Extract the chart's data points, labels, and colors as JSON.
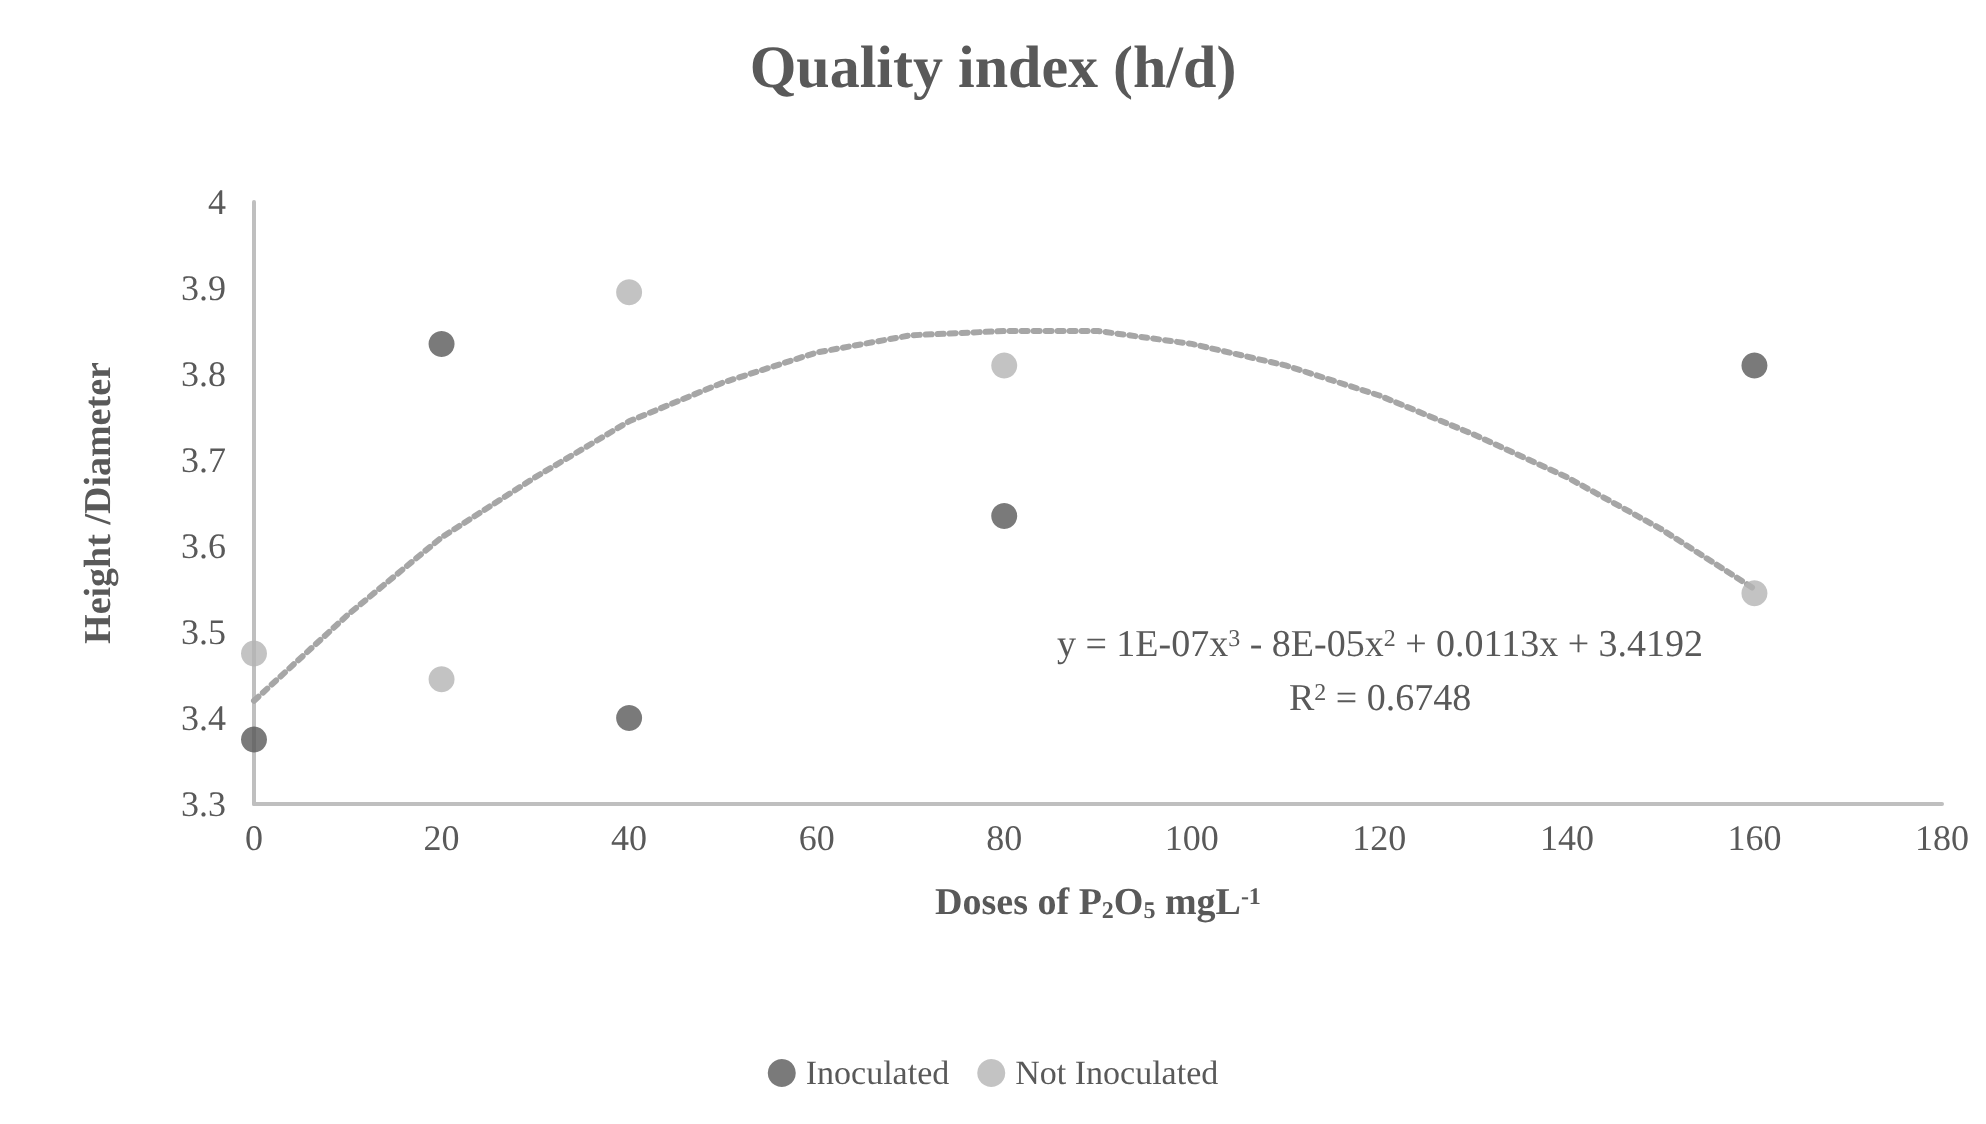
{
  "chart_data": {
    "type": "scatter",
    "title": "Quality index (h/d)",
    "xlabel": "Doses of P$_{2}$O$_{5}$ mgL$^{-1}$",
    "ylabel": "Height /Diameter",
    "x": [
      0,
      20,
      40,
      80,
      160
    ],
    "series": [
      {
        "name": "Inoculated",
        "color": "#595959",
        "values": [
          3.375,
          3.835,
          3.4,
          3.635,
          3.81
        ]
      },
      {
        "name": "Not Inoculated",
        "color": "#b4b4b4",
        "values": [
          3.475,
          3.445,
          3.895,
          3.81,
          3.545
        ]
      },
      {
        "type": "line",
        "color": "#a6a6a6",
        "line_style": "dotted",
        "marker": "none",
        "x": [
          0,
          10,
          20,
          30,
          40,
          50,
          60,
          70,
          80,
          90,
          100,
          110,
          120,
          130,
          140,
          150,
          160
        ],
        "values": [
          3.42,
          3.52,
          3.61,
          3.68,
          3.745,
          3.79,
          3.825,
          3.845,
          3.85,
          3.85,
          3.835,
          3.81,
          3.775,
          3.73,
          3.68,
          3.62,
          3.55
        ]
      }
    ],
    "annotations": [
      "y = 1E-07x$^{3}$ - 8E-05x$^{2}$ + 0.0113x + 3.4192",
      "R$^{2}$ = 0.6748"
    ],
    "xlim": [
      0,
      180
    ],
    "xticks": [
      0,
      20,
      40,
      60,
      80,
      100,
      120,
      140,
      160,
      180
    ],
    "ylim": [
      3.3,
      4
    ],
    "yticks": [
      3.3,
      3.4,
      3.5,
      3.6,
      3.7,
      3.8,
      3.9,
      4
    ],
    "grid": false,
    "legend": "bottom",
    "marker": "circle"
  }
}
